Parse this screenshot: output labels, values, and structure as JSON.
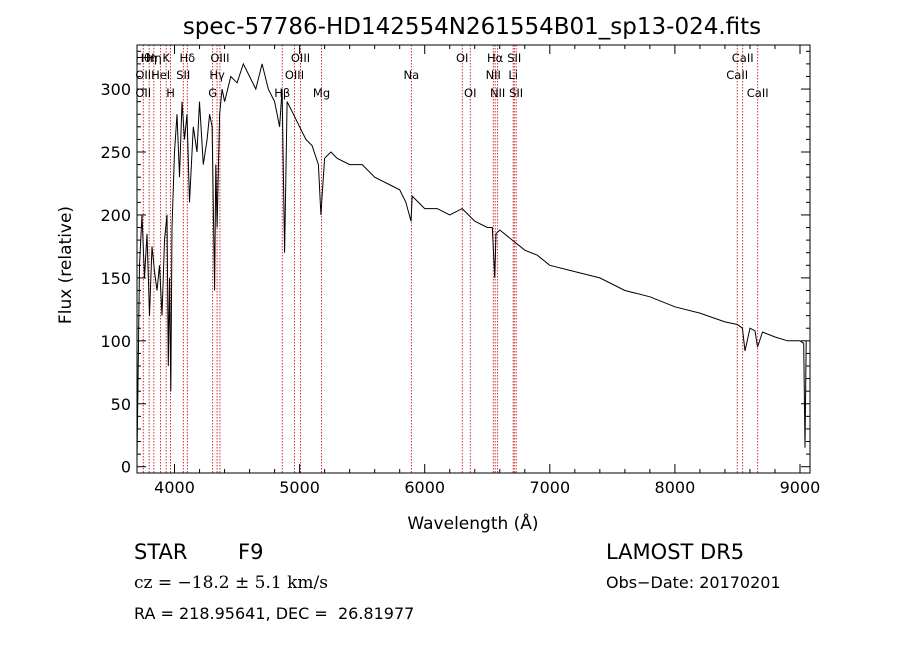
{
  "chart_data": {
    "type": "line",
    "title": "spec-57786-HD142554N261554B01_sp13-024.fits",
    "xlabel": "Wavelength (Å)",
    "ylabel": "Flux (relative)",
    "xlim": [
      3700,
      9080
    ],
    "ylim": [
      -5,
      335
    ],
    "x_ticks": [
      4000,
      5000,
      6000,
      7000,
      8000,
      9000
    ],
    "y_ticks": [
      0,
      50,
      100,
      150,
      200,
      250,
      300
    ],
    "grid": false,
    "series": [
      {
        "x": [
          3700,
          3720,
          3740,
          3760,
          3780,
          3800,
          3820,
          3840,
          3860,
          3880,
          3900,
          3920,
          3940,
          3950,
          3960,
          3970,
          3980,
          4000,
          4020,
          4040,
          4060,
          4080,
          4100,
          4120,
          4150,
          4180,
          4200,
          4230,
          4260,
          4280,
          4300,
          4320,
          4330,
          4340,
          4360,
          4380,
          4400,
          4450,
          4500,
          4550,
          4600,
          4650,
          4700,
          4750,
          4800,
          4840,
          4860,
          4880,
          4900,
          4950,
          5000,
          5050,
          5100,
          5150,
          5170,
          5180,
          5200,
          5250,
          5300,
          5400,
          5500,
          5600,
          5700,
          5800,
          5850,
          5890,
          5900,
          5950,
          6000,
          6100,
          6200,
          6300,
          6400,
          6500,
          6540,
          6560,
          6570,
          6600,
          6700,
          6800,
          6900,
          7000,
          7200,
          7400,
          7600,
          7800,
          8000,
          8200,
          8400,
          8500,
          8540,
          8560,
          8600,
          8640,
          8660,
          8700,
          8800,
          8900,
          9000,
          9030,
          9040,
          9050
        ],
        "y": [
          5,
          160,
          200,
          150,
          185,
          120,
          175,
          155,
          140,
          160,
          120,
          180,
          200,
          80,
          150,
          60,
          190,
          250,
          280,
          230,
          290,
          260,
          280,
          210,
          270,
          250,
          290,
          240,
          260,
          280,
          270,
          140,
          240,
          190,
          280,
          300,
          290,
          310,
          305,
          320,
          310,
          300,
          320,
          300,
          290,
          270,
          300,
          170,
          290,
          280,
          270,
          260,
          255,
          240,
          200,
          215,
          245,
          250,
          245,
          240,
          240,
          230,
          225,
          220,
          210,
          195,
          215,
          210,
          205,
          205,
          200,
          205,
          195,
          190,
          190,
          150,
          185,
          188,
          180,
          172,
          168,
          160,
          155,
          150,
          140,
          135,
          127,
          122,
          115,
          113,
          110,
          92,
          110,
          108,
          95,
          107,
          103,
          100,
          100,
          98,
          15,
          100
        ]
      }
    ],
    "line_labels": [
      {
        "x": 3750,
        "rows": [
          {
            "row": 1,
            "text": "Hθ"
          },
          {
            "row": 2,
            "text": "OII"
          },
          {
            "row": 3,
            "text": "OII"
          }
        ]
      },
      {
        "x": 3797,
        "rows": [
          {
            "row": 1,
            "text": "Hη"
          }
        ]
      },
      {
        "x": 3835,
        "rows": [
          {
            "row": 1,
            "text": "Hη"
          }
        ]
      },
      {
        "x": 3889,
        "rows": [
          {
            "row": 2,
            "text": "HeI"
          }
        ]
      },
      {
        "x": 3933,
        "rows": [
          {
            "row": 1,
            "text": "K"
          }
        ]
      },
      {
        "x": 3968,
        "rows": [
          {
            "row": 3,
            "text": "H"
          }
        ]
      },
      {
        "x": 4070,
        "rows": [
          {
            "row": 2,
            "text": "SII"
          }
        ]
      },
      {
        "x": 4102,
        "rows": [
          {
            "row": 1,
            "text": "Hδ"
          }
        ]
      },
      {
        "x": 4305,
        "rows": [
          {
            "row": 3,
            "text": "G"
          }
        ]
      },
      {
        "x": 4340,
        "rows": [
          {
            "row": 2,
            "text": "Hγ"
          }
        ]
      },
      {
        "x": 4363,
        "rows": [
          {
            "row": 1,
            "text": "OIII"
          }
        ]
      },
      {
        "x": 4861,
        "rows": [
          {
            "row": 3,
            "text": "Hβ"
          }
        ]
      },
      {
        "x": 4959,
        "rows": [
          {
            "row": 2,
            "text": "OIII"
          }
        ]
      },
      {
        "x": 5007,
        "rows": [
          {
            "row": 1,
            "text": "OIII"
          }
        ]
      },
      {
        "x": 5175,
        "rows": [
          {
            "row": 3,
            "text": "Mg"
          }
        ]
      },
      {
        "x": 5893,
        "rows": [
          {
            "row": 2,
            "text": "Na"
          }
        ]
      },
      {
        "x": 6300,
        "rows": [
          {
            "row": 1,
            "text": "OI"
          }
        ]
      },
      {
        "x": 6364,
        "rows": [
          {
            "row": 3,
            "text": "OI"
          }
        ]
      },
      {
        "x": 6548,
        "rows": [
          {
            "row": 2,
            "text": "NII"
          }
        ]
      },
      {
        "x": 6563,
        "rows": [
          {
            "row": 1,
            "text": "Hα"
          }
        ]
      },
      {
        "x": 6583,
        "rows": [
          {
            "row": 3,
            "text": "NII"
          }
        ]
      },
      {
        "x": 6707,
        "rows": [
          {
            "row": 2,
            "text": "Li"
          }
        ]
      },
      {
        "x": 6716,
        "rows": [
          {
            "row": 1,
            "text": "SII"
          }
        ]
      },
      {
        "x": 6731,
        "rows": [
          {
            "row": 3,
            "text": "SII"
          }
        ]
      },
      {
        "x": 8498,
        "rows": [
          {
            "row": 2,
            "text": "CaII"
          }
        ]
      },
      {
        "x": 8542,
        "rows": [
          {
            "row": 1,
            "text": "CaII"
          }
        ]
      },
      {
        "x": 8662,
        "rows": [
          {
            "row": 3,
            "text": "CaII"
          }
        ]
      }
    ]
  },
  "info": {
    "obj_class": "STAR",
    "subclass": "F9",
    "survey": "LAMOST DR5",
    "cz": "cz = −18.2 ± 5.1 km/s",
    "obs_date": "Obs−Date: 20170201",
    "radec": "RA = 218.95641, DEC =  26.81977"
  },
  "colors": {
    "spectrum": "#000000",
    "line_marker": "#c00000",
    "axes": "#000000"
  }
}
